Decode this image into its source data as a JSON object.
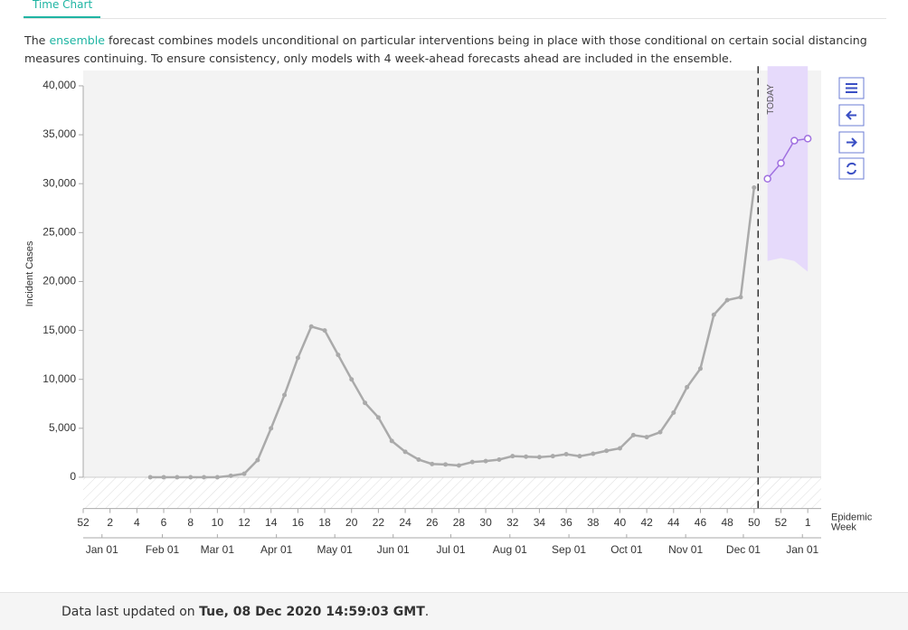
{
  "tab": "Time Chart",
  "description": {
    "before": "The ",
    "link": "ensemble",
    "after": " forecast combines models unconditional on particular interventions being in place with those conditional on certain social distancing measures continuing. To ensure consistency, only models with 4 week-ahead forecasts ahead are included in the ensemble."
  },
  "footer": {
    "before": "Data last updated on ",
    "date": "Tue, 08 Dec 2020 14:59:03 GMT",
    "after": "."
  },
  "chart_data": {
    "type": "line",
    "ylabel": "Incident Cases",
    "xlabel": "Epidemic Week",
    "today_label": "TODAY",
    "today_x": 50.3,
    "ylim": [
      -3200,
      42000
    ],
    "yticks": [
      0,
      {
        "value": 5000,
        "label": "5,000"
      },
      {
        "value": 10000,
        "label": "10,000"
      },
      {
        "value": 15000,
        "label": "15,000"
      },
      {
        "value": 20000,
        "label": "20,000"
      },
      {
        "value": 25000,
        "label": "25,000"
      },
      {
        "value": 30000,
        "label": "30,000"
      },
      {
        "value": 35000,
        "label": "35,000"
      },
      {
        "value": 40000,
        "label": "40,000"
      }
    ],
    "xlim": [
      0,
      55
    ],
    "xticks": [
      {
        "value": 0,
        "label": "52"
      },
      2,
      4,
      6,
      8,
      10,
      12,
      14,
      16,
      18,
      20,
      22,
      24,
      26,
      28,
      30,
      32,
      34,
      36,
      38,
      40,
      42,
      44,
      46,
      48,
      50,
      52,
      {
        "value": 54,
        "label": "1"
      }
    ],
    "date_ticks": [
      {
        "value": 1.4,
        "label": "Jan 01"
      },
      {
        "value": 5.9,
        "label": "Feb 01"
      },
      {
        "value": 10,
        "label": "Mar 01"
      },
      {
        "value": 14.4,
        "label": "Apr 01"
      },
      {
        "value": 18.75,
        "label": "May 01"
      },
      {
        "value": 23.1,
        "label": "Jun 01"
      },
      {
        "value": 27.4,
        "label": "Jul 01"
      },
      {
        "value": 31.8,
        "label": "Aug 01"
      },
      {
        "value": 36.2,
        "label": "Sep 01"
      },
      {
        "value": 40.5,
        "label": "Oct 01"
      },
      {
        "value": 44.9,
        "label": "Nov 01"
      },
      {
        "value": 49.2,
        "label": "Dec 01"
      },
      {
        "value": 53.6,
        "label": "Jan 01"
      }
    ],
    "series": [
      {
        "color": "#aaaaaa",
        "x": [
          5,
          6,
          7,
          8,
          9,
          10,
          11,
          12,
          13,
          14,
          15,
          16,
          17,
          18,
          19,
          20,
          21,
          22,
          23,
          24,
          25,
          26,
          27,
          28,
          29,
          30,
          31,
          32,
          33,
          34,
          35,
          36,
          37,
          38,
          39,
          40,
          41,
          42,
          43,
          44,
          45,
          46,
          47,
          48,
          49,
          50
        ],
        "values": [
          0,
          0,
          0,
          0,
          0,
          0,
          150,
          350,
          1750,
          5000,
          8400,
          12200,
          15400,
          15000,
          12500,
          10000,
          7600,
          6100,
          3700,
          2600,
          1800,
          1350,
          1300,
          1200,
          1550,
          1650,
          1800,
          2150,
          2100,
          2050,
          2150,
          2350,
          2150,
          2400,
          2700,
          2950,
          4300,
          4100,
          4600,
          6600,
          9200,
          11100,
          16600,
          18100,
          18400,
          29600
        ]
      },
      {
        "color": "#a070e0",
        "band_color": "#e6dafb",
        "x": [
          51,
          52,
          53,
          54
        ],
        "values": [
          30500,
          32100,
          34400,
          34600
        ],
        "lower": [
          22100,
          22400,
          22100,
          21000
        ],
        "upper": [
          42000,
          42000,
          42000,
          42000
        ]
      }
    ]
  }
}
